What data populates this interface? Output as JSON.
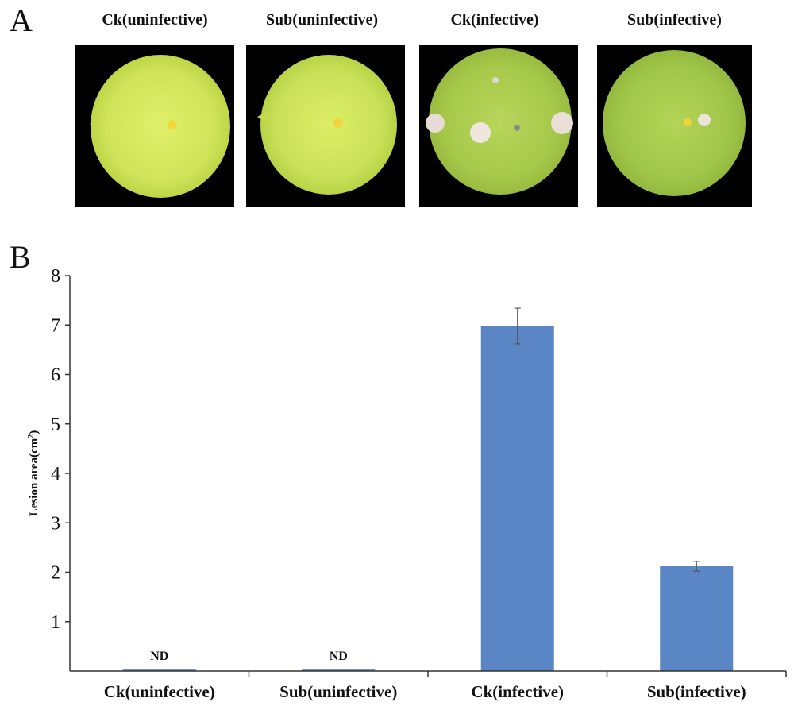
{
  "panels": {
    "a_label": "A",
    "b_label": "B"
  },
  "photos": [
    {
      "label": "Ck(uninfective)"
    },
    {
      "label": "Sub(uninfective)"
    },
    {
      "label": "Ck(infective)"
    },
    {
      "label": "Sub(infective)"
    }
  ],
  "chart_data": {
    "type": "bar",
    "title": "",
    "xlabel": "",
    "ylabel": "Lesion area(cm",
    "ylabel_superscript": "2",
    "ylabel_close": ")",
    "categories": [
      "Ck(uninfective)",
      "Sub(uninfective)",
      "Ck(infective)",
      "Sub(infective)"
    ],
    "values": [
      0.03,
      0.03,
      6.98,
      2.12
    ],
    "errors": [
      0,
      0,
      0.36,
      0.1
    ],
    "annotations": [
      "ND",
      "ND",
      "",
      ""
    ],
    "ylim": [
      0,
      8
    ],
    "yticks": [
      1,
      2,
      3,
      4,
      5,
      6,
      7,
      8
    ],
    "bar_color": "#5a86c6",
    "grid": false
  }
}
